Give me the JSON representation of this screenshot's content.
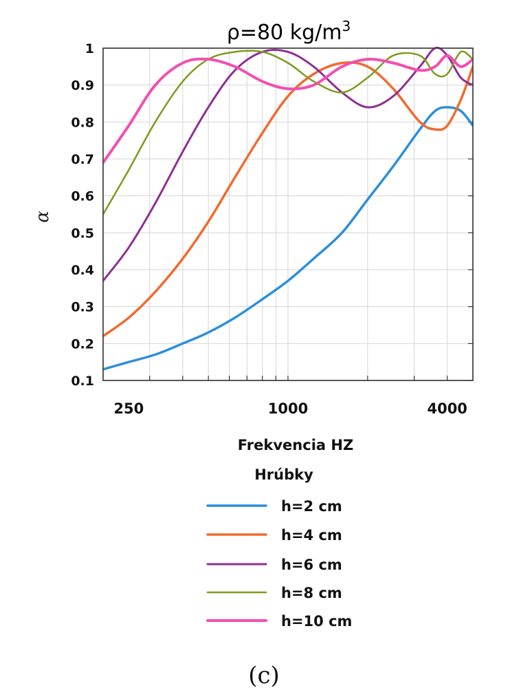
{
  "chart_data": {
    "type": "line",
    "title": "ρ=80 kg/m",
    "title_superscript": "3",
    "xlabel": "Frekvencia HZ",
    "ylabel": "α",
    "x_scale": "log",
    "xlim": [
      200,
      5000
    ],
    "ylim": [
      0.1,
      1
    ],
    "x_ticks": [
      {
        "value": 250,
        "label": "250"
      },
      {
        "value": 1000,
        "label": "1000"
      },
      {
        "value": 4000,
        "label": "4000"
      }
    ],
    "y_ticks": [
      {
        "value": 0.1,
        "label": "0.1"
      },
      {
        "value": 0.2,
        "label": "0.2"
      },
      {
        "value": 0.3,
        "label": "0.3"
      },
      {
        "value": 0.4,
        "label": "0.4"
      },
      {
        "value": 0.5,
        "label": "0.5"
      },
      {
        "value": 0.6,
        "label": "0.6"
      },
      {
        "value": 0.7,
        "label": "0.7"
      },
      {
        "value": 0.8,
        "label": "0.8"
      },
      {
        "value": 0.9,
        "label": "0.9"
      },
      {
        "value": 1,
        "label": "1"
      }
    ],
    "grid": true,
    "legend_title": "Hrúbky",
    "legend_position": "below",
    "series": [
      {
        "name": "h=2 cm",
        "color": "#2b8fdc",
        "x": [
          200,
          250,
          315,
          400,
          500,
          630,
          800,
          1000,
          1250,
          1600,
          2000,
          2500,
          3150,
          3600,
          4000,
          4500,
          5000
        ],
        "y": [
          0.13,
          0.15,
          0.17,
          0.2,
          0.23,
          0.27,
          0.32,
          0.37,
          0.43,
          0.5,
          0.59,
          0.68,
          0.78,
          0.83,
          0.84,
          0.83,
          0.79
        ]
      },
      {
        "name": "h=4 cm",
        "color": "#f26a2e",
        "x": [
          200,
          250,
          315,
          400,
          500,
          630,
          800,
          1000,
          1250,
          1600,
          2000,
          2500,
          3150,
          3600,
          4000,
          4500,
          5000
        ],
        "y": [
          0.22,
          0.27,
          0.34,
          0.43,
          0.53,
          0.65,
          0.77,
          0.87,
          0.93,
          0.96,
          0.95,
          0.89,
          0.8,
          0.78,
          0.79,
          0.86,
          0.95
        ]
      },
      {
        "name": "h=6 cm",
        "color": "#8e2f93",
        "x": [
          200,
          250,
          315,
          400,
          500,
          630,
          800,
          1000,
          1250,
          1600,
          2000,
          2500,
          3150,
          3600,
          4000,
          4500,
          5000
        ],
        "y": [
          0.37,
          0.46,
          0.58,
          0.72,
          0.84,
          0.94,
          0.99,
          0.99,
          0.95,
          0.88,
          0.84,
          0.87,
          0.95,
          1.0,
          0.98,
          0.92,
          0.9
        ]
      },
      {
        "name": "h=8 cm",
        "color": "#7d9a1e",
        "x": [
          200,
          250,
          315,
          400,
          500,
          630,
          800,
          1000,
          1250,
          1600,
          2000,
          2500,
          3150,
          3600,
          4000,
          4500,
          5000
        ],
        "y": [
          0.55,
          0.67,
          0.8,
          0.91,
          0.97,
          0.99,
          0.99,
          0.96,
          0.91,
          0.88,
          0.92,
          0.98,
          0.98,
          0.93,
          0.93,
          0.99,
          0.97
        ]
      },
      {
        "name": "h=10 cm",
        "color": "#f24fb0",
        "x": [
          200,
          250,
          315,
          400,
          500,
          630,
          800,
          1000,
          1250,
          1600,
          2000,
          2500,
          3150,
          3600,
          4000,
          4500,
          5000
        ],
        "y": [
          0.69,
          0.79,
          0.9,
          0.96,
          0.97,
          0.95,
          0.91,
          0.89,
          0.9,
          0.95,
          0.97,
          0.96,
          0.94,
          0.95,
          0.98,
          0.95,
          0.97
        ]
      }
    ]
  },
  "caption": "(c)"
}
